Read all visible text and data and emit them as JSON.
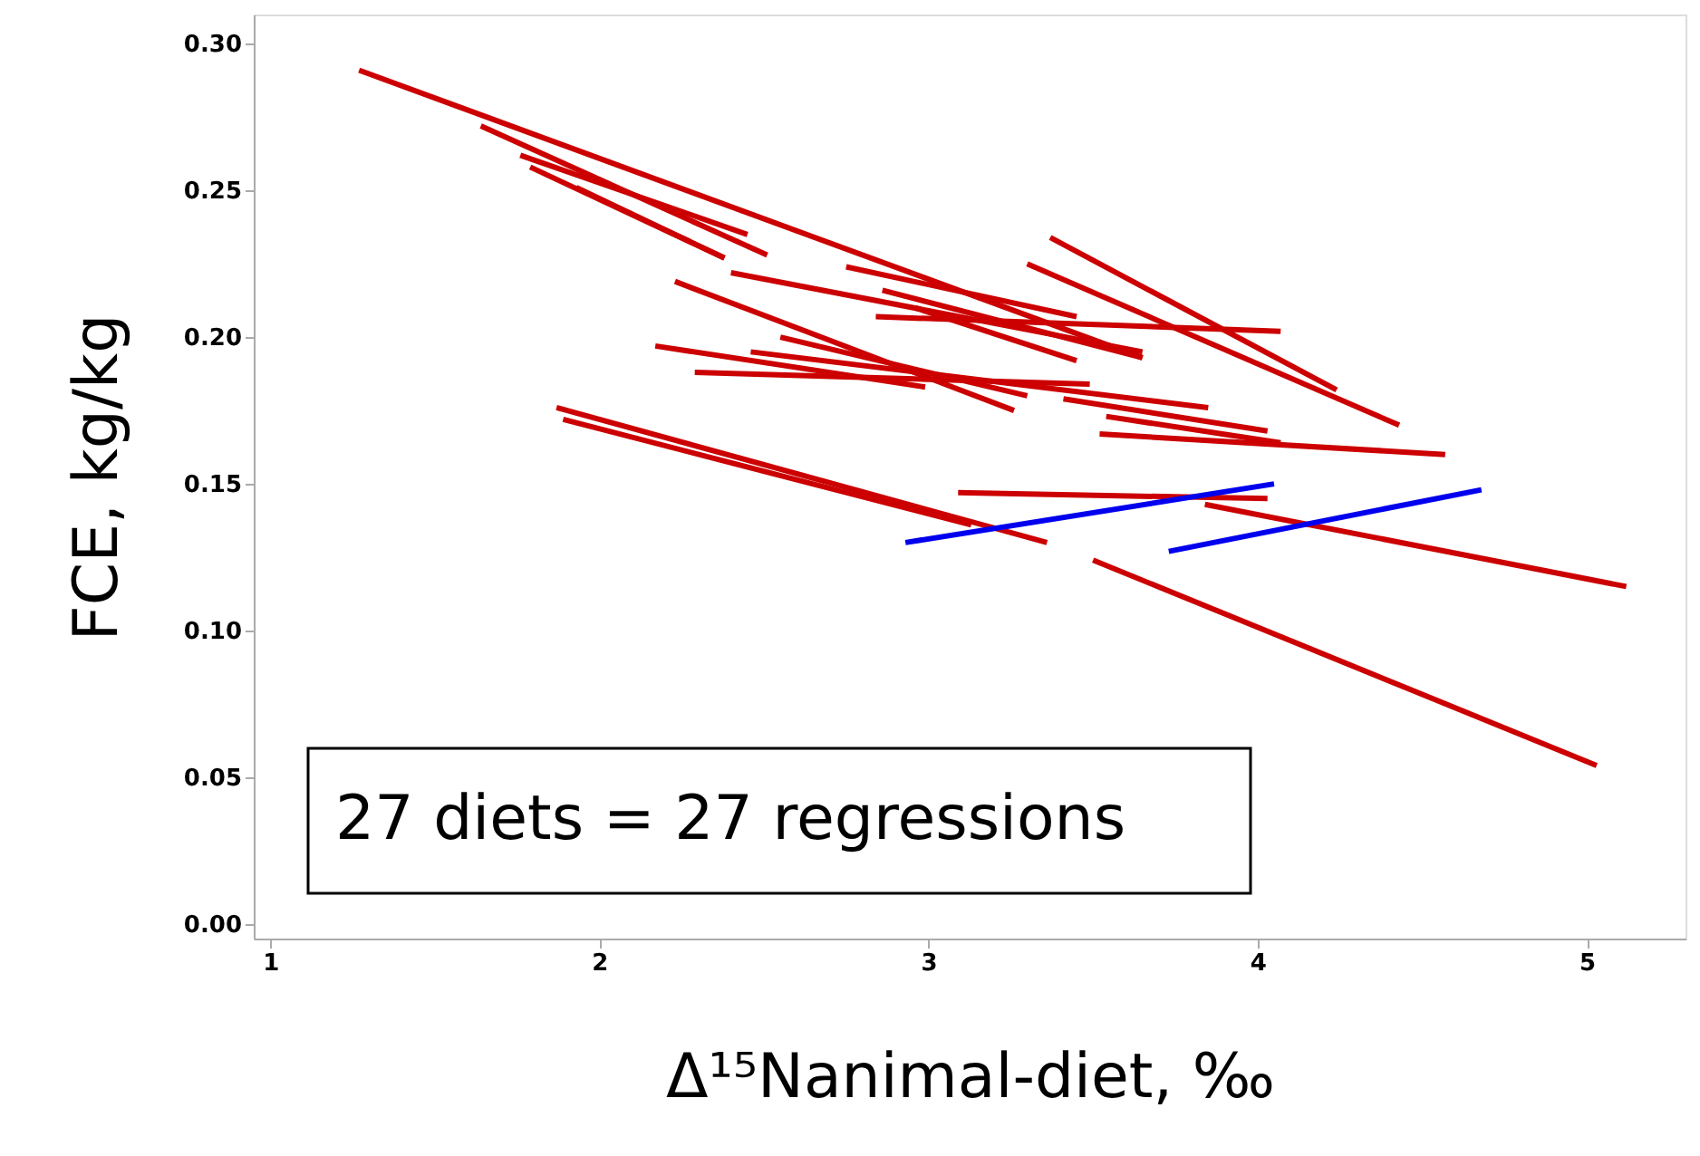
{
  "chart_data": {
    "type": "line",
    "xlabel": "Δ¹⁵Nanimal-diet, ‰",
    "ylabel": "FCE, kg/kg",
    "annotations": [
      "27 diets = 27 regressions"
    ],
    "xlim": [
      0.95,
      5.3
    ],
    "ylim": [
      -0.005,
      0.31
    ],
    "xticks": [
      1,
      2,
      3,
      4,
      5
    ],
    "yticks": [
      {
        "value": 0,
        "label": "0.00"
      },
      {
        "value": 0.05,
        "label": "0.05"
      },
      {
        "value": 0.1,
        "label": "0.10"
      },
      {
        "value": 0.15,
        "label": "0.15"
      },
      {
        "value": 0.2,
        "label": "0.20"
      },
      {
        "value": 0.25,
        "label": "0.25"
      },
      {
        "value": 0.3,
        "label": "0.30"
      }
    ],
    "grid": false,
    "series": [
      {
        "color": "#cc0000",
        "x": [
          1.27,
          3.65
        ],
        "values": [
          0.291,
          0.193
        ]
      },
      {
        "color": "#cc0000",
        "x": [
          1.64,
          2.51
        ],
        "values": [
          0.272,
          0.228
        ]
      },
      {
        "color": "#cc0000",
        "x": [
          1.76,
          2.45
        ],
        "values": [
          0.262,
          0.235
        ]
      },
      {
        "color": "#cc0000",
        "x": [
          1.93,
          2.38
        ],
        "values": [
          0.251,
          0.227
        ]
      },
      {
        "color": "#cc0000",
        "x": [
          1.79,
          2.38
        ],
        "values": [
          0.258,
          0.227
        ]
      },
      {
        "color": "#cc0000",
        "x": [
          2.23,
          3.26
        ],
        "values": [
          0.219,
          0.175
        ]
      },
      {
        "color": "#cc0000",
        "x": [
          2.4,
          3.65
        ],
        "values": [
          0.222,
          0.195
        ]
      },
      {
        "color": "#cc0000",
        "x": [
          2.75,
          3.45
        ],
        "values": [
          0.224,
          0.207
        ]
      },
      {
        "color": "#cc0000",
        "x": [
          2.86,
          3.65
        ],
        "values": [
          0.216,
          0.193
        ]
      },
      {
        "color": "#cc0000",
        "x": [
          2.96,
          3.45
        ],
        "values": [
          0.21,
          0.192
        ]
      },
      {
        "color": "#cc0000",
        "x": [
          2.84,
          4.07
        ],
        "values": [
          0.207,
          0.202
        ]
      },
      {
        "color": "#cc0000",
        "x": [
          3.3,
          4.43
        ],
        "values": [
          0.225,
          0.17
        ]
      },
      {
        "color": "#cc0000",
        "x": [
          3.37,
          4.24
        ],
        "values": [
          0.234,
          0.182
        ]
      },
      {
        "color": "#cc0000",
        "x": [
          3.41,
          4.03
        ],
        "values": [
          0.179,
          0.168
        ]
      },
      {
        "color": "#cc0000",
        "x": [
          3.54,
          4.07
        ],
        "values": [
          0.173,
          0.164
        ]
      },
      {
        "color": "#cc0000",
        "x": [
          3.52,
          4.57
        ],
        "values": [
          0.167,
          0.16
        ]
      },
      {
        "color": "#cc0000",
        "x": [
          2.46,
          3.85
        ],
        "values": [
          0.195,
          0.176
        ]
      },
      {
        "color": "#cc0000",
        "x": [
          2.17,
          2.99
        ],
        "values": [
          0.197,
          0.183
        ]
      },
      {
        "color": "#cc0000",
        "x": [
          2.29,
          3.49
        ],
        "values": [
          0.188,
          0.184
        ]
      },
      {
        "color": "#cc0000",
        "x": [
          1.87,
          3.36
        ],
        "values": [
          0.176,
          0.13
        ]
      },
      {
        "color": "#cc0000",
        "x": [
          1.89,
          3.13
        ],
        "values": [
          0.172,
          0.136
        ]
      },
      {
        "color": "#cc0000",
        "x": [
          3.09,
          4.03
        ],
        "values": [
          0.147,
          0.145
        ]
      },
      {
        "color": "#cc0000",
        "x": [
          3.84,
          5.12
        ],
        "values": [
          0.143,
          0.115
        ]
      },
      {
        "color": "#cc0000",
        "x": [
          3.5,
          5.03
        ],
        "values": [
          0.124,
          0.054
        ]
      },
      {
        "color": "#cc0000",
        "x": [
          2.55,
          3.3
        ],
        "values": [
          0.2,
          0.18
        ]
      },
      {
        "color": "#0000ee",
        "x": [
          2.93,
          4.05
        ],
        "values": [
          0.13,
          0.15
        ]
      },
      {
        "color": "#0000ee",
        "x": [
          3.73,
          4.68
        ],
        "values": [
          0.127,
          0.148
        ]
      }
    ]
  }
}
